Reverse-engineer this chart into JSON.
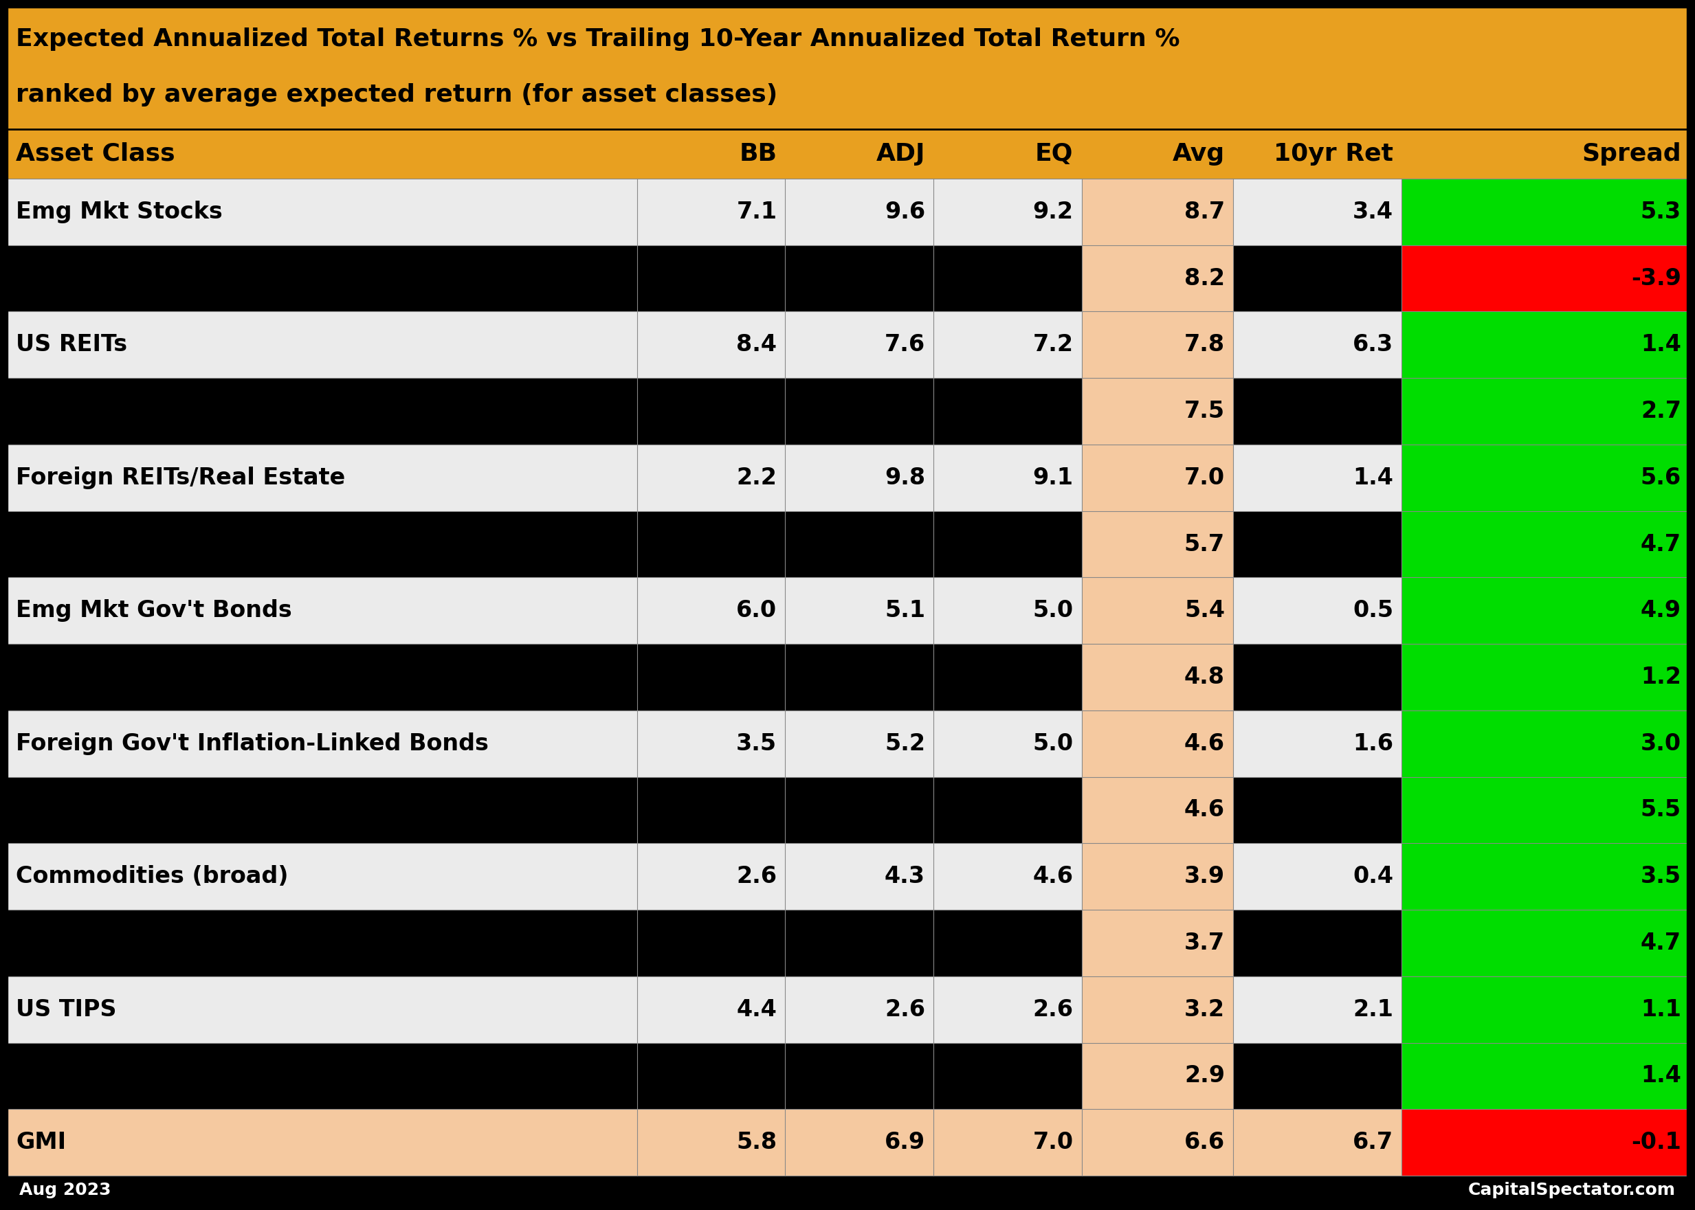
{
  "title_line1": "Expected Annualized Total Returns % vs Trailing 10-Year Annualized Total Return %",
  "title_line2": "ranked by average expected return (for asset classes)",
  "header_bg": "#E8A020",
  "header_text_color": "#000000",
  "col_headers": [
    "Asset Class",
    "BB",
    "ADJ",
    "EQ",
    "Avg",
    "10yr Ret",
    "Spread"
  ],
  "rows": [
    {
      "asset_class": "Emg Mkt Stocks",
      "bb": "7.1",
      "adj": "9.6",
      "eq": "9.2",
      "avg": "8.7",
      "ret10yr": "3.4",
      "spread": "5.3",
      "row_bg": "#EBEBEB",
      "avg_bg": "#F5C9A0",
      "ret_bg": "#EBEBEB",
      "spread_bg": "#00DD00",
      "is_black": false
    },
    {
      "asset_class": "",
      "bb": "",
      "adj": "",
      "eq": "",
      "avg": "8.2",
      "ret10yr": "",
      "spread": "-3.9",
      "row_bg": "#000000",
      "avg_bg": "#F5C9A0",
      "ret_bg": "#000000",
      "spread_bg": "#FF0000",
      "is_black": true
    },
    {
      "asset_class": "US REITs",
      "bb": "8.4",
      "adj": "7.6",
      "eq": "7.2",
      "avg": "7.8",
      "ret10yr": "6.3",
      "spread": "1.4",
      "row_bg": "#EBEBEB",
      "avg_bg": "#F5C9A0",
      "ret_bg": "#EBEBEB",
      "spread_bg": "#00DD00",
      "is_black": false
    },
    {
      "asset_class": "",
      "bb": "",
      "adj": "",
      "eq": "",
      "avg": "7.5",
      "ret10yr": "",
      "spread": "2.7",
      "row_bg": "#000000",
      "avg_bg": "#F5C9A0",
      "ret_bg": "#000000",
      "spread_bg": "#00DD00",
      "is_black": true
    },
    {
      "asset_class": "Foreign REITs/Real Estate",
      "bb": "2.2",
      "adj": "9.8",
      "eq": "9.1",
      "avg": "7.0",
      "ret10yr": "1.4",
      "spread": "5.6",
      "row_bg": "#EBEBEB",
      "avg_bg": "#F5C9A0",
      "ret_bg": "#EBEBEB",
      "spread_bg": "#00DD00",
      "is_black": false
    },
    {
      "asset_class": "",
      "bb": "",
      "adj": "",
      "eq": "",
      "avg": "5.7",
      "ret10yr": "",
      "spread": "4.7",
      "row_bg": "#000000",
      "avg_bg": "#F5C9A0",
      "ret_bg": "#000000",
      "spread_bg": "#00DD00",
      "is_black": true
    },
    {
      "asset_class": "Emg Mkt Gov't Bonds",
      "bb": "6.0",
      "adj": "5.1",
      "eq": "5.0",
      "avg": "5.4",
      "ret10yr": "0.5",
      "spread": "4.9",
      "row_bg": "#EBEBEB",
      "avg_bg": "#F5C9A0",
      "ret_bg": "#EBEBEB",
      "spread_bg": "#00DD00",
      "is_black": false
    },
    {
      "asset_class": "",
      "bb": "",
      "adj": "",
      "eq": "",
      "avg": "4.8",
      "ret10yr": "",
      "spread": "1.2",
      "row_bg": "#000000",
      "avg_bg": "#F5C9A0",
      "ret_bg": "#000000",
      "spread_bg": "#00DD00",
      "is_black": true
    },
    {
      "asset_class": "Foreign Gov't Inflation-Linked Bonds",
      "bb": "3.5",
      "adj": "5.2",
      "eq": "5.0",
      "avg": "4.6",
      "ret10yr": "1.6",
      "spread": "3.0",
      "row_bg": "#EBEBEB",
      "avg_bg": "#F5C9A0",
      "ret_bg": "#EBEBEB",
      "spread_bg": "#00DD00",
      "is_black": false
    },
    {
      "asset_class": "",
      "bb": "",
      "adj": "",
      "eq": "",
      "avg": "4.6",
      "ret10yr": "",
      "spread": "5.5",
      "row_bg": "#000000",
      "avg_bg": "#F5C9A0",
      "ret_bg": "#000000",
      "spread_bg": "#00DD00",
      "is_black": true
    },
    {
      "asset_class": "Commodities (broad)",
      "bb": "2.6",
      "adj": "4.3",
      "eq": "4.6",
      "avg": "3.9",
      "ret10yr": "0.4",
      "spread": "3.5",
      "row_bg": "#EBEBEB",
      "avg_bg": "#F5C9A0",
      "ret_bg": "#EBEBEB",
      "spread_bg": "#00DD00",
      "is_black": false
    },
    {
      "asset_class": "",
      "bb": "",
      "adj": "",
      "eq": "",
      "avg": "3.7",
      "ret10yr": "",
      "spread": "4.7",
      "row_bg": "#000000",
      "avg_bg": "#F5C9A0",
      "ret_bg": "#000000",
      "spread_bg": "#00DD00",
      "is_black": true
    },
    {
      "asset_class": "US TIPS",
      "bb": "4.4",
      "adj": "2.6",
      "eq": "2.6",
      "avg": "3.2",
      "ret10yr": "2.1",
      "spread": "1.1",
      "row_bg": "#EBEBEB",
      "avg_bg": "#F5C9A0",
      "ret_bg": "#EBEBEB",
      "spread_bg": "#00DD00",
      "is_black": false
    },
    {
      "asset_class": "",
      "bb": "",
      "adj": "",
      "eq": "",
      "avg": "2.9",
      "ret10yr": "",
      "spread": "1.4",
      "row_bg": "#000000",
      "avg_bg": "#F5C9A0",
      "ret_bg": "#000000",
      "spread_bg": "#00DD00",
      "is_black": true
    },
    {
      "asset_class": "GMI",
      "bb": "5.8",
      "adj": "6.9",
      "eq": "7.0",
      "avg": "6.6",
      "ret10yr": "6.7",
      "spread": "-0.1",
      "row_bg": "#F5C9A0",
      "avg_bg": "#F5C9A0",
      "ret_bg": "#F5C9A0",
      "spread_bg": "#FF0000",
      "is_black": false
    }
  ],
  "footer_left": "Aug 2023",
  "footer_right": "CapitalSpectator.com",
  "title_fontsize": 26,
  "header_fontsize": 26,
  "data_fontsize": 24,
  "footer_fontsize": 18
}
